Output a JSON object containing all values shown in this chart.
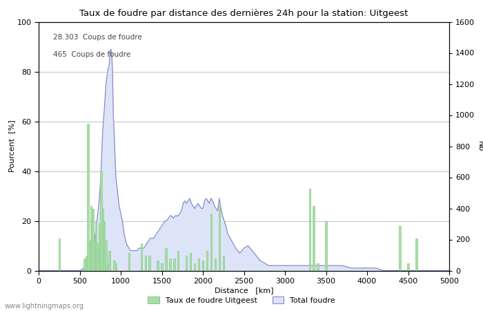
{
  "title": "Taux de foudre par distance des dernières 24h pour la station: Uitgeest",
  "xlabel": "Distance   [km]",
  "ylabel_left": "Pourcent  [%]",
  "ylabel_right": "Nb",
  "annotation1": "28.303  Coups de foudre",
  "annotation2": "465  Coups de foudre",
  "legend_green": "Taux de foudre Uitgeest",
  "legend_blue": "Total foudre",
  "xlim": [
    0,
    5000
  ],
  "ylim_left": [
    0,
    100
  ],
  "ylim_right": [
    0,
    1600
  ],
  "xticks": [
    0,
    500,
    1000,
    1500,
    2000,
    2500,
    3000,
    3500,
    4000,
    4500,
    5000
  ],
  "yticks_left": [
    0,
    20,
    40,
    60,
    80,
    100
  ],
  "yticks_right": [
    0,
    200,
    400,
    600,
    800,
    1000,
    1200,
    1400,
    1600
  ],
  "bg_color": "#ffffff",
  "grid_color": "#c8c8c8",
  "bar_color": "#aaddaa",
  "bar_edge_color": "#88cc88",
  "area_fill_color": "#dde4f8",
  "area_line_color": "#8888cc",
  "watermark": "www.lightningmaps.org",
  "green_bars": [
    [
      250,
      13
    ],
    [
      500,
      0
    ],
    [
      520,
      0
    ],
    [
      540,
      1
    ],
    [
      560,
      5
    ],
    [
      580,
      6
    ],
    [
      600,
      59
    ],
    [
      620,
      12
    ],
    [
      640,
      26
    ],
    [
      660,
      25
    ],
    [
      680,
      12
    ],
    [
      700,
      20
    ],
    [
      720,
      11
    ],
    [
      740,
      19
    ],
    [
      760,
      40
    ],
    [
      780,
      25
    ],
    [
      800,
      20
    ],
    [
      820,
      12
    ],
    [
      840,
      3
    ],
    [
      860,
      8
    ],
    [
      880,
      0
    ],
    [
      900,
      0
    ],
    [
      920,
      4
    ],
    [
      940,
      3
    ],
    [
      960,
      0
    ],
    [
      980,
      0
    ],
    [
      1000,
      0
    ],
    [
      1050,
      0
    ],
    [
      1100,
      7
    ],
    [
      1150,
      0
    ],
    [
      1200,
      0
    ],
    [
      1250,
      11
    ],
    [
      1300,
      6
    ],
    [
      1350,
      6
    ],
    [
      1400,
      0
    ],
    [
      1450,
      4
    ],
    [
      1500,
      3
    ],
    [
      1550,
      9
    ],
    [
      1600,
      5
    ],
    [
      1650,
      5
    ],
    [
      1700,
      8
    ],
    [
      1750,
      0
    ],
    [
      1800,
      6
    ],
    [
      1850,
      7
    ],
    [
      1900,
      3
    ],
    [
      1950,
      5
    ],
    [
      2000,
      4
    ],
    [
      2050,
      8
    ],
    [
      2100,
      23
    ],
    [
      2150,
      5
    ],
    [
      2200,
      26
    ],
    [
      2250,
      6
    ],
    [
      2300,
      0
    ],
    [
      2400,
      0
    ],
    [
      2500,
      0
    ],
    [
      2600,
      0
    ],
    [
      2700,
      0
    ],
    [
      2800,
      0
    ],
    [
      2900,
      0
    ],
    [
      3000,
      0
    ],
    [
      3100,
      0
    ],
    [
      3200,
      0
    ],
    [
      3300,
      33
    ],
    [
      3350,
      26
    ],
    [
      3400,
      3
    ],
    [
      3450,
      0
    ],
    [
      3500,
      20
    ],
    [
      3550,
      0
    ],
    [
      3600,
      0
    ],
    [
      3700,
      0
    ],
    [
      3800,
      0
    ],
    [
      3900,
      0
    ],
    [
      4000,
      0
    ],
    [
      4100,
      0
    ],
    [
      4200,
      0
    ],
    [
      4300,
      0
    ],
    [
      4400,
      18
    ],
    [
      4500,
      3
    ],
    [
      4600,
      13
    ],
    [
      4700,
      0
    ],
    [
      4800,
      0
    ],
    [
      4900,
      0
    ]
  ],
  "blue_area_x": [
    0,
    100,
    200,
    300,
    400,
    500,
    550,
    600,
    620,
    640,
    660,
    680,
    700,
    720,
    740,
    760,
    780,
    800,
    820,
    840,
    860,
    870,
    880,
    890,
    900,
    910,
    920,
    940,
    960,
    980,
    1000,
    1020,
    1040,
    1060,
    1080,
    1100,
    1120,
    1140,
    1160,
    1180,
    1200,
    1220,
    1240,
    1260,
    1280,
    1300,
    1320,
    1340,
    1360,
    1380,
    1400,
    1420,
    1440,
    1460,
    1480,
    1500,
    1520,
    1540,
    1560,
    1580,
    1600,
    1620,
    1640,
    1660,
    1680,
    1700,
    1720,
    1740,
    1760,
    1780,
    1800,
    1820,
    1840,
    1860,
    1880,
    1900,
    1920,
    1940,
    1960,
    1980,
    2000,
    2020,
    2040,
    2060,
    2080,
    2100,
    2120,
    2140,
    2160,
    2180,
    2200,
    2220,
    2240,
    2260,
    2280,
    2300,
    2350,
    2400,
    2450,
    2500,
    2550,
    2600,
    2650,
    2700,
    2750,
    2800,
    2850,
    2900,
    2950,
    3000,
    3100,
    3200,
    3300,
    3400,
    3500,
    3600,
    3700,
    3800,
    3900,
    4000,
    4100,
    4200,
    4300,
    4400,
    4500,
    4600,
    4700,
    4800,
    4900,
    5000
  ],
  "blue_area_y": [
    0,
    0,
    0,
    0,
    0,
    0,
    1,
    2,
    3,
    5,
    8,
    12,
    17,
    23,
    29,
    40,
    56,
    65,
    75,
    80,
    83,
    88,
    89,
    87,
    80,
    62,
    55,
    38,
    32,
    26,
    23,
    20,
    15,
    12,
    10,
    9,
    8,
    8,
    8,
    8,
    8,
    9,
    9,
    9,
    9,
    10,
    11,
    12,
    13,
    13,
    13,
    14,
    15,
    16,
    17,
    18,
    19,
    20,
    20,
    21,
    22,
    22,
    21,
    22,
    22,
    22,
    23,
    24,
    27,
    28,
    27,
    28,
    29,
    27,
    26,
    25,
    26,
    27,
    26,
    25,
    25,
    28,
    29,
    28,
    27,
    29,
    28,
    26,
    25,
    24,
    29,
    25,
    22,
    20,
    18,
    15,
    12,
    9,
    7,
    9,
    10,
    8,
    6,
    4,
    3,
    2,
    2,
    2,
    2,
    2,
    2,
    2,
    2,
    2,
    2,
    2,
    2,
    1,
    1,
    1,
    1,
    0,
    0,
    0,
    0,
    0,
    0,
    0,
    0,
    0
  ]
}
